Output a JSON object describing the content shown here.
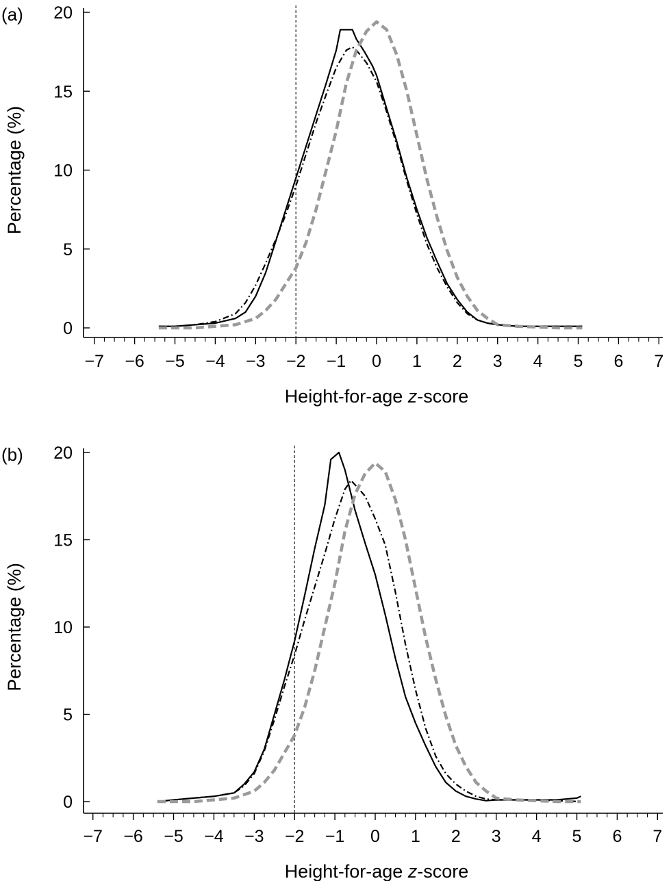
{
  "chart_data": [
    {
      "type": "line",
      "panel_label": "(a)",
      "xlabel_prefix": "Height-for-age ",
      "xlabel_italic": "z",
      "xlabel_suffix": "-score",
      "ylabel": "Percentage (%)",
      "xlim": [
        -7,
        7
      ],
      "ylim": [
        0,
        20
      ],
      "x_ticks": [
        "−7",
        "−6",
        "−5",
        "−4",
        "−3",
        "−2",
        "−1",
        "0",
        "1",
        "2",
        "3",
        "4",
        "5",
        "6",
        "7"
      ],
      "y_ticks": [
        "0",
        "5",
        "10",
        "15",
        "20"
      ],
      "reference_line_x": -2,
      "grid": false,
      "series": [
        {
          "style": "solid-black",
          "x": [
            -5.4,
            -5,
            -4.5,
            -4,
            -3.5,
            -3.25,
            -3,
            -2.75,
            -2.5,
            -2.25,
            -2,
            -1.75,
            -1.5,
            -1.25,
            -1,
            -0.9,
            -0.75,
            -0.6,
            -0.5,
            -0.3,
            -0.1,
            0,
            0.25,
            0.5,
            0.75,
            1,
            1.25,
            1.5,
            1.75,
            2,
            2.25,
            2.5,
            2.75,
            3,
            3.5,
            4,
            4.5,
            5.1
          ],
          "y": [
            0.1,
            0.1,
            0.2,
            0.3,
            0.6,
            1.0,
            2.0,
            3.5,
            5.5,
            7.5,
            9.5,
            11.5,
            13.5,
            15.5,
            17.6,
            18.9,
            18.9,
            18.9,
            18.3,
            17.5,
            16.6,
            16,
            13.9,
            11.8,
            9.5,
            7.5,
            5.7,
            4.2,
            2.8,
            1.8,
            1.0,
            0.5,
            0.3,
            0.2,
            0.1,
            0.1,
            0.1,
            0.1
          ]
        },
        {
          "style": "dash-dot-black",
          "x": [
            -5.4,
            -5,
            -4.5,
            -4,
            -3.5,
            -3.25,
            -3,
            -2.75,
            -2.5,
            -2.25,
            -2,
            -1.75,
            -1.5,
            -1.25,
            -1,
            -0.75,
            -0.6,
            -0.5,
            -0.25,
            0,
            0.25,
            0.5,
            0.75,
            1,
            1.25,
            1.5,
            1.75,
            2,
            2.25,
            2.5,
            2.75,
            3,
            3.5,
            4,
            4.5,
            5.1
          ],
          "y": [
            0.1,
            0.1,
            0.2,
            0.4,
            0.9,
            1.6,
            2.7,
            4.1,
            5.6,
            7.2,
            9.0,
            11.0,
            13.0,
            14.8,
            16.5,
            17.6,
            17.8,
            17.6,
            16.8,
            15.6,
            13.7,
            11.6,
            9.3,
            7.2,
            5.3,
            3.8,
            2.6,
            1.6,
            0.9,
            0.5,
            0.3,
            0.2,
            0.1,
            0.1,
            0.1,
            0.1
          ]
        },
        {
          "style": "dashed-grey",
          "x": [
            -5.4,
            -5,
            -4.5,
            -4,
            -3.5,
            -3,
            -2.75,
            -2.5,
            -2.25,
            -2,
            -1.75,
            -1.5,
            -1.25,
            -1,
            -0.75,
            -0.5,
            -0.25,
            0,
            0.25,
            0.5,
            0.75,
            1,
            1.25,
            1.5,
            1.75,
            2,
            2.25,
            2.5,
            2.75,
            3,
            3.5,
            4,
            4.5,
            5.1
          ],
          "y": [
            0,
            0,
            0,
            0.1,
            0.2,
            0.6,
            1.1,
            1.8,
            2.8,
            3.8,
            5.4,
            7.5,
            10.0,
            12.5,
            15.5,
            17.6,
            18.8,
            19.4,
            18.9,
            17.3,
            15.0,
            12.2,
            9.4,
            7.0,
            4.9,
            3.2,
            2.0,
            1.1,
            0.6,
            0.2,
            0.1,
            0.05,
            0,
            0
          ]
        }
      ]
    },
    {
      "type": "line",
      "panel_label": "(b)",
      "xlabel_prefix": "Height-for-age ",
      "xlabel_italic": "z",
      "xlabel_suffix": "-score",
      "ylabel": "Percentage (%)",
      "xlim": [
        -7,
        7
      ],
      "ylim": [
        0,
        20
      ],
      "x_ticks": [
        "−7",
        "−6",
        "−5",
        "−4",
        "−3",
        "−2",
        "−1",
        "0",
        "1",
        "2",
        "3",
        "4",
        "5",
        "6",
        "7"
      ],
      "y_ticks": [
        "0",
        "5",
        "10",
        "15",
        "20"
      ],
      "reference_line_x": -2,
      "grid": false,
      "series": [
        {
          "style": "solid-black",
          "x": [
            -5.4,
            -5,
            -4.5,
            -4,
            -3.5,
            -3.25,
            -3,
            -2.75,
            -2.5,
            -2.25,
            -2,
            -1.75,
            -1.5,
            -1.25,
            -1.1,
            -0.9,
            -0.75,
            -0.5,
            -0.25,
            0,
            0.25,
            0.5,
            0.75,
            1,
            1.25,
            1.5,
            1.75,
            2,
            2.25,
            2.5,
            2.75,
            3,
            3.5,
            4,
            4.5,
            5,
            5.1
          ],
          "y": [
            0,
            0.1,
            0.2,
            0.3,
            0.5,
            1.0,
            1.7,
            3.0,
            5.0,
            7.0,
            9.2,
            11.8,
            14.5,
            17.0,
            19.6,
            20.0,
            19.0,
            16.7,
            14.8,
            13.0,
            10.7,
            8.2,
            6.0,
            4.5,
            3.2,
            2.0,
            1.1,
            0.6,
            0.3,
            0.15,
            0.05,
            0.1,
            0.1,
            0.1,
            0.1,
            0.2,
            0.3
          ]
        },
        {
          "style": "dash-dot-black",
          "x": [
            -5.4,
            -5,
            -4.5,
            -4,
            -3.5,
            -3.25,
            -3,
            -2.75,
            -2.5,
            -2.25,
            -2,
            -1.75,
            -1.5,
            -1.25,
            -1,
            -0.75,
            -0.6,
            -0.4,
            -0.25,
            0,
            0.25,
            0.5,
            0.75,
            1,
            1.25,
            1.5,
            1.75,
            2,
            2.25,
            2.5,
            2.75,
            3,
            3.5,
            4,
            4.5,
            5.1
          ],
          "y": [
            0,
            0.1,
            0.2,
            0.3,
            0.5,
            0.9,
            1.6,
            2.9,
            4.7,
            6.6,
            8.4,
            10.4,
            12.3,
            14.2,
            16.2,
            17.9,
            18.4,
            17.9,
            17.5,
            16.2,
            14.7,
            12.0,
            9.0,
            6.4,
            4.2,
            2.6,
            1.6,
            1.0,
            0.6,
            0.3,
            0.15,
            0.1,
            0.1,
            0.1,
            0.05,
            0
          ]
        },
        {
          "style": "dashed-grey",
          "x": [
            -5.4,
            -5,
            -4.5,
            -4,
            -3.5,
            -3,
            -2.75,
            -2.5,
            -2.25,
            -2,
            -1.75,
            -1.5,
            -1.25,
            -1,
            -0.75,
            -0.5,
            -0.25,
            0,
            0.25,
            0.5,
            0.75,
            1,
            1.25,
            1.5,
            1.75,
            2,
            2.25,
            2.5,
            2.75,
            3,
            3.5,
            4,
            4.5,
            5.1
          ],
          "y": [
            0,
            0,
            0,
            0.1,
            0.2,
            0.6,
            1.1,
            1.8,
            2.8,
            3.8,
            5.4,
            7.5,
            10.0,
            12.5,
            15.5,
            17.6,
            18.8,
            19.4,
            18.9,
            17.3,
            15.0,
            12.2,
            9.4,
            7.0,
            4.9,
            3.2,
            2.0,
            1.1,
            0.6,
            0.2,
            0.1,
            0.05,
            0,
            0
          ]
        }
      ]
    }
  ]
}
